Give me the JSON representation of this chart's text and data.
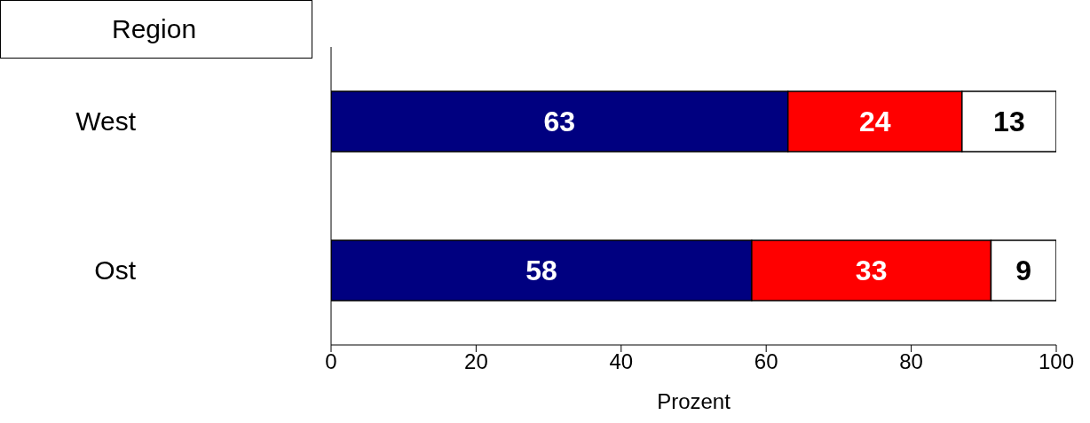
{
  "chart_data": {
    "type": "bar",
    "orientation": "horizontal",
    "stacked": true,
    "ylabel": "Region",
    "xlabel": "Prozent",
    "categories": [
      "West",
      "Ost"
    ],
    "series": [
      {
        "color": "#000080",
        "values": [
          63,
          58
        ]
      },
      {
        "color": "#ff0000",
        "values": [
          24,
          33
        ]
      },
      {
        "color": "#ffffff",
        "values": [
          13,
          9
        ]
      }
    ],
    "xlim": [
      0,
      100
    ],
    "xticks": [
      0,
      20,
      40,
      60,
      80,
      100
    ],
    "data_labels": true,
    "grid": false,
    "legend": false
  }
}
